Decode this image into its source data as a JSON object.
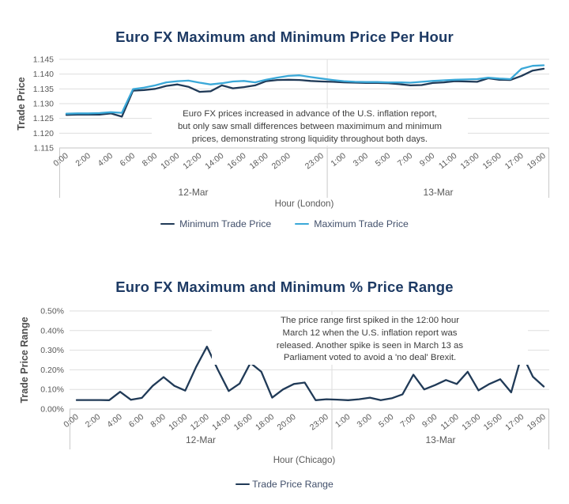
{
  "colors": {
    "title": "#1d3a64",
    "axis_text": "#595959",
    "annotation_text": "#3d3d3d",
    "grid": "#dedede",
    "axis_line": "#c4c4c4",
    "separator": "#c9c9c9",
    "min_line": "#203a57",
    "max_line": "#3aa8d8",
    "range_line": "#203a57"
  },
  "chart_data": [
    {
      "type": "line",
      "title": "Euro FX Maximum and Minimum Price Per Hour",
      "xlabel": "Hour (London)",
      "ylabel": "Trade Price",
      "ylim": [
        1.115,
        1.145
      ],
      "grid": true,
      "legend_position": "bottom",
      "yticks": [
        {
          "value": 1.115,
          "label": "1.115"
        },
        {
          "value": 1.12,
          "label": "1.120"
        },
        {
          "value": 1.125,
          "label": "1.125"
        },
        {
          "value": 1.13,
          "label": "1.130"
        },
        {
          "value": 1.135,
          "label": "1.135"
        },
        {
          "value": 1.14,
          "label": "1.140"
        },
        {
          "value": 1.145,
          "label": "1.145"
        }
      ],
      "day_groups": [
        {
          "label": "12-Mar",
          "start_index": 0,
          "end_index": 23
        },
        {
          "label": "13-Mar",
          "start_index": 24,
          "end_index": 43
        }
      ],
      "xticks": [
        {
          "i": 0,
          "label": "0:00"
        },
        {
          "i": 2,
          "label": "2:00"
        },
        {
          "i": 4,
          "label": "4:00"
        },
        {
          "i": 6,
          "label": "6:00"
        },
        {
          "i": 8,
          "label": "8:00"
        },
        {
          "i": 10,
          "label": "10:00"
        },
        {
          "i": 12,
          "label": "12:00"
        },
        {
          "i": 14,
          "label": "14:00"
        },
        {
          "i": 16,
          "label": "16:00"
        },
        {
          "i": 18,
          "label": "18:00"
        },
        {
          "i": 20,
          "label": "20:00"
        },
        {
          "i": 23,
          "label": "23:00"
        },
        {
          "i": 25,
          "label": "1:00"
        },
        {
          "i": 27,
          "label": "3:00"
        },
        {
          "i": 29,
          "label": "5:00"
        },
        {
          "i": 31,
          "label": "7:00"
        },
        {
          "i": 33,
          "label": "9:00"
        },
        {
          "i": 35,
          "label": "11:00"
        },
        {
          "i": 37,
          "label": "13:00"
        },
        {
          "i": 39,
          "label": "15:00"
        },
        {
          "i": 41,
          "label": "17:00"
        },
        {
          "i": 43,
          "label": "19:00"
        }
      ],
      "series": [
        {
          "name": "Minimum Trade Price",
          "color": "#203a57",
          "values": [
            1.1262,
            1.1263,
            1.1263,
            1.1263,
            1.1267,
            1.1256,
            1.1344,
            1.1346,
            1.135,
            1.136,
            1.1365,
            1.1357,
            1.134,
            1.1342,
            1.1362,
            1.1352,
            1.1356,
            1.1362,
            1.1376,
            1.138,
            1.1381,
            1.138,
            1.1377,
            1.1375,
            1.1374,
            1.1372,
            1.1371,
            1.137,
            1.137,
            1.1369,
            1.1366,
            1.1362,
            1.1363,
            1.137,
            1.1372,
            1.1376,
            1.1375,
            1.1374,
            1.1386,
            1.1381,
            1.138,
            1.1394,
            1.1412,
            1.1418
          ]
        },
        {
          "name": "Maximum Trade Price",
          "color": "#3aa8d8",
          "values": [
            1.1266,
            1.1267,
            1.1267,
            1.1268,
            1.1271,
            1.1269,
            1.1349,
            1.1354,
            1.1362,
            1.1372,
            1.1376,
            1.1378,
            1.1371,
            1.1365,
            1.1369,
            1.1375,
            1.1377,
            1.1372,
            1.1381,
            1.1388,
            1.1394,
            1.1396,
            1.139,
            1.1385,
            1.138,
            1.1376,
            1.1374,
            1.1373,
            1.1373,
            1.1372,
            1.1372,
            1.1371,
            1.1374,
            1.1377,
            1.1379,
            1.1381,
            1.1382,
            1.1383,
            1.1388,
            1.1385,
            1.1383,
            1.1418,
            1.1428,
            1.143
          ]
        }
      ],
      "annotation": [
        "Euro FX prices increased in advance of the U.S. inflation report,",
        "but only saw small differences between maximimum and minimum",
        "prices, demonstrating strong liquidity throughout both days."
      ]
    },
    {
      "type": "line",
      "title": "Euro FX Maximum and Minimum % Price Range",
      "xlabel": "Hour (Chicago)",
      "ylabel": "Trade Price Range",
      "ylim": [
        0,
        0.5
      ],
      "grid": true,
      "legend_position": "bottom",
      "yticks": [
        {
          "value": 0.0,
          "label": "0.00%"
        },
        {
          "value": 0.1,
          "label": "0.10%"
        },
        {
          "value": 0.2,
          "label": "0.20%"
        },
        {
          "value": 0.3,
          "label": "0.30%"
        },
        {
          "value": 0.4,
          "label": "0.40%"
        },
        {
          "value": 0.5,
          "label": "0.50%"
        }
      ],
      "day_groups": [
        {
          "label": "12-Mar",
          "start_index": 0,
          "end_index": 23
        },
        {
          "label": "13-Mar",
          "start_index": 24,
          "end_index": 43
        }
      ],
      "xticks": [
        {
          "i": 0,
          "label": "0:00"
        },
        {
          "i": 2,
          "label": "2:00"
        },
        {
          "i": 4,
          "label": "4:00"
        },
        {
          "i": 6,
          "label": "6:00"
        },
        {
          "i": 8,
          "label": "8:00"
        },
        {
          "i": 10,
          "label": "10:00"
        },
        {
          "i": 12,
          "label": "12:00"
        },
        {
          "i": 14,
          "label": "14:00"
        },
        {
          "i": 16,
          "label": "16:00"
        },
        {
          "i": 18,
          "label": "18:00"
        },
        {
          "i": 20,
          "label": "20:00"
        },
        {
          "i": 23,
          "label": "23:00"
        },
        {
          "i": 25,
          "label": "1:00"
        },
        {
          "i": 27,
          "label": "3:00"
        },
        {
          "i": 29,
          "label": "5:00"
        },
        {
          "i": 31,
          "label": "7:00"
        },
        {
          "i": 33,
          "label": "9:00"
        },
        {
          "i": 35,
          "label": "11:00"
        },
        {
          "i": 37,
          "label": "13:00"
        },
        {
          "i": 39,
          "label": "15:00"
        },
        {
          "i": 41,
          "label": "17:00"
        },
        {
          "i": 43,
          "label": "19:00"
        }
      ],
      "series": [
        {
          "name": "Trade Price Range",
          "color": "#203a57",
          "values": [
            0.046,
            0.046,
            0.046,
            0.045,
            0.088,
            0.047,
            0.057,
            0.118,
            0.163,
            0.118,
            0.094,
            0.215,
            0.318,
            0.2,
            0.092,
            0.13,
            0.235,
            0.19,
            0.058,
            0.1,
            0.128,
            0.135,
            0.045,
            0.05,
            0.048,
            0.045,
            0.05,
            0.058,
            0.045,
            0.055,
            0.075,
            0.175,
            0.1,
            0.122,
            0.148,
            0.128,
            0.19,
            0.095,
            0.128,
            0.152,
            0.085,
            0.28,
            0.165,
            0.115
          ]
        }
      ],
      "annotation": [
        "The price range first spiked in the 12:00 hour",
        "March 12 when the U.S. inflation report was",
        "released. Another spike is seen in March 13 as",
        "Parliament voted to avoid a 'no deal' Brexit."
      ]
    }
  ]
}
